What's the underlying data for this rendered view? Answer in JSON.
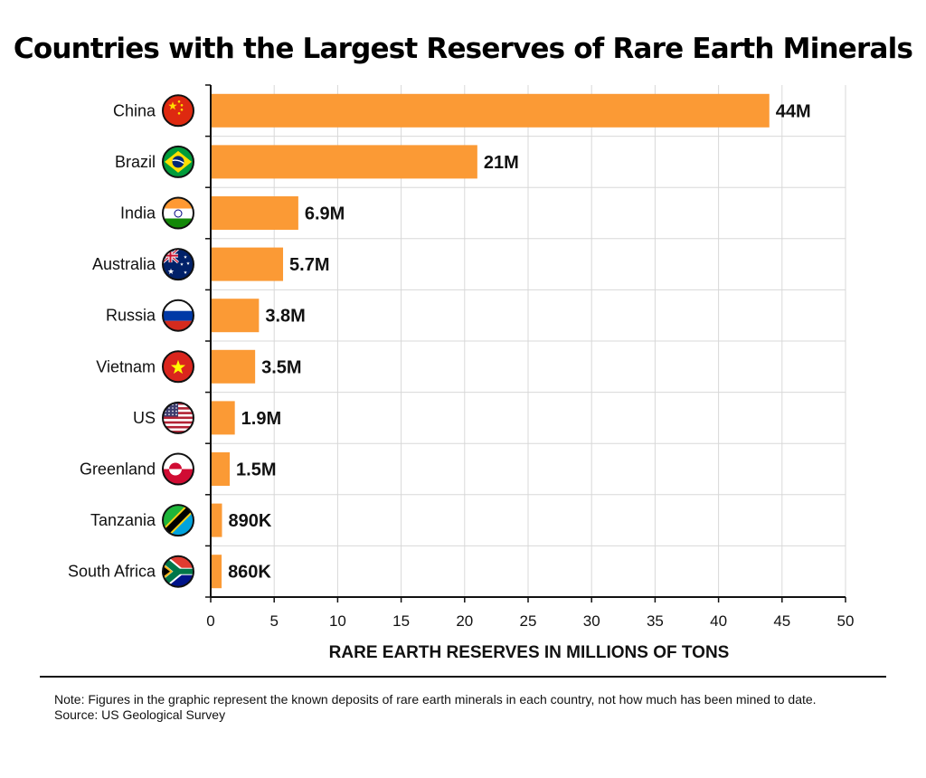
{
  "chart_data": {
    "type": "bar",
    "orientation": "horizontal",
    "title": "Countries with the Largest Reserves of Rare Earth Minerals",
    "xlabel": "RARE EARTH RESERVES IN MILLIONS OF TONS",
    "ylabel": "",
    "xlim": [
      0,
      50
    ],
    "x_ticks": [
      0,
      5,
      10,
      15,
      20,
      25,
      30,
      35,
      40,
      45,
      50
    ],
    "grid": true,
    "bar_color": "#FB9A35",
    "categories": [
      "China",
      "Brazil",
      "India",
      "Australia",
      "Russia",
      "Vietnam",
      "US",
      "Greenland",
      "Tanzania",
      "South Africa"
    ],
    "values": [
      44,
      21,
      6.9,
      5.7,
      3.8,
      3.5,
      1.9,
      1.5,
      0.89,
      0.86
    ],
    "value_labels": [
      "44M",
      "21M",
      "6.9M",
      "5.7M",
      "3.8M",
      "3.5M",
      "1.9M",
      "1.5M",
      "890K",
      "860K"
    ],
    "flag_icons": [
      "china-flag-icon",
      "brazil-flag-icon",
      "india-flag-icon",
      "australia-flag-icon",
      "russia-flag-icon",
      "vietnam-flag-icon",
      "us-flag-icon",
      "greenland-flag-icon",
      "tanzania-flag-icon",
      "south-africa-flag-icon"
    ]
  },
  "footnote": {
    "note": "Note: Figures in the graphic represent the known deposits of rare earth minerals in each country, not how much has been mined to date.",
    "source": "Source: US Geological Survey"
  }
}
